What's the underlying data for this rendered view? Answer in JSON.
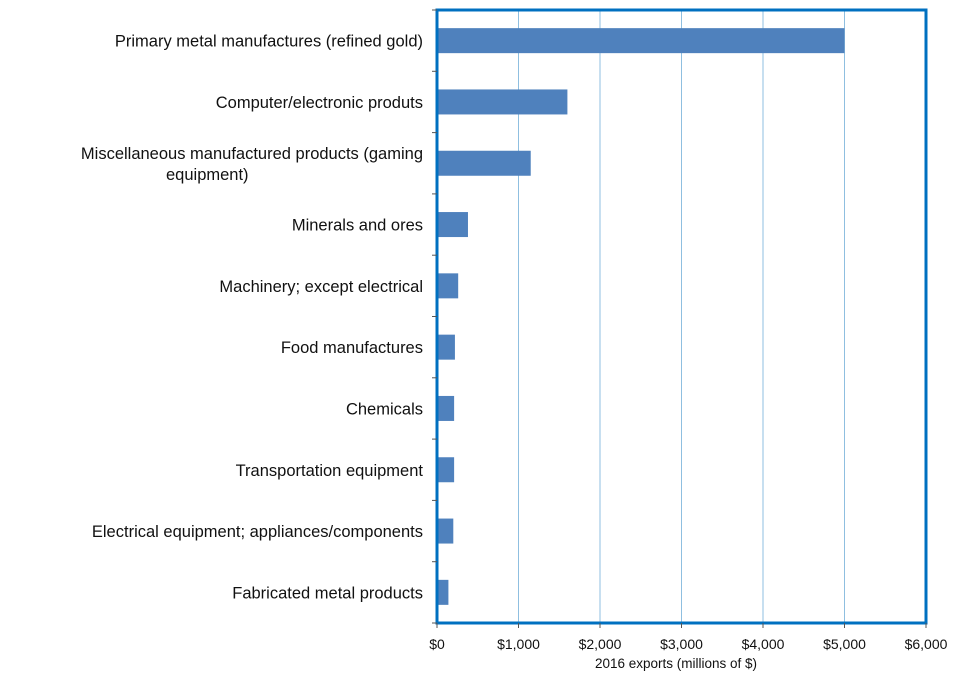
{
  "chart_data": {
    "type": "bar",
    "orientation": "horizontal",
    "title": "",
    "xlabel": "2016 exports (millions of $)",
    "ylabel": "",
    "categories": [
      "Primary metal manufactures (refined gold)",
      "Computer/electronic produts",
      "Miscellaneous manufactured products (gaming equipment)",
      "Minerals and ores",
      "Machinery; except electrical",
      "Food manufactures",
      "Chemicals",
      "Transportation equipment",
      "Electrical equipment; appliances/components",
      "Fabricated metal products"
    ],
    "category_label_lines": [
      [
        "Primary metal manufactures (refined gold)"
      ],
      [
        "Computer/electronic produts"
      ],
      [
        "Miscellaneous manufactured products (gaming",
        "equipment)"
      ],
      [
        "Minerals and ores"
      ],
      [
        "Machinery; except electrical"
      ],
      [
        "Food manufactures"
      ],
      [
        "Chemicals"
      ],
      [
        "Transportation equipment"
      ],
      [
        "Electrical equipment; appliances/components"
      ],
      [
        "Fabricated metal products"
      ]
    ],
    "values": [
      5000,
      1600,
      1150,
      380,
      260,
      220,
      210,
      210,
      200,
      140
    ],
    "xlim": [
      0,
      6000
    ],
    "xticks": [
      0,
      1000,
      2000,
      3000,
      4000,
      5000,
      6000
    ],
    "xtick_labels": [
      "$0",
      "$1,000",
      "$2,000",
      "$3,000",
      "$4,000",
      "$5,000",
      "$6,000"
    ],
    "grid": "vertical",
    "legend": "none",
    "colors": {
      "bar": "#4f81bd",
      "gridline": "#8fbfe0",
      "border": "#0070c0",
      "axis": "#555555"
    }
  }
}
